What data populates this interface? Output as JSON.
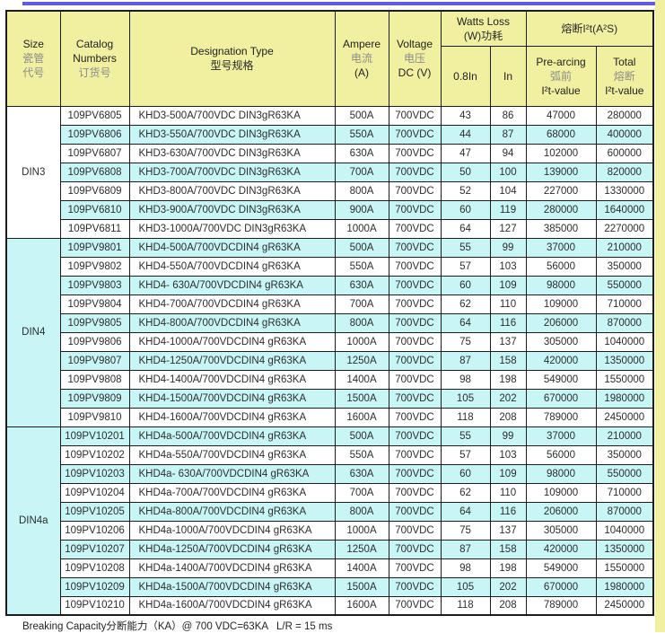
{
  "page": {
    "colors": {
      "accent_line": "#5f5ce0",
      "header_bg": "#f0f0a0",
      "stripe_cyan": "#c8f6f6",
      "border": "#1c1c1c"
    },
    "footer_note": "Breaking Capacity分断能力（KA）@ 700 VDC=63KA   L/R = 15 ms"
  },
  "table": {
    "headers": {
      "size_en": "Size",
      "size_cn1": "瓷管",
      "size_cn2": "代号",
      "catalog_en1": "Catalog",
      "catalog_en2": "Numbers",
      "catalog_cn": "订货号",
      "designation_en": "Designation Type",
      "designation_cn": "型号规格",
      "ampere_en": "Ampere",
      "ampere_cn": "电流",
      "ampere_unit": "(A)",
      "voltage_en": "Voltage",
      "voltage_cn": "电压",
      "voltage_unit": "DC (V)",
      "watts_loss_en": "Watts Loss",
      "watts_loss_cn": "(W)功耗",
      "watts_sub_08in": "0.8In",
      "watts_sub_in": "In",
      "i2t_title": "熔断I²t(A²S)",
      "prearcing_en": "Pre-arcing",
      "prearcing_cn": "弧前",
      "prearcing_val": "I²t-value",
      "total_en": "Total",
      "total_cn": "熔断",
      "total_val": "I²t-value"
    },
    "groups": [
      {
        "size": "DIN3",
        "rows": [
          [
            "109PV6805",
            "KHD3-500A/700VDC DIN3gR63KA",
            "500A",
            "700VDC",
            "43",
            "86",
            "47000",
            "280000"
          ],
          [
            "109PV6806",
            "KHD3-550A/700VDC DIN3gR63KA",
            "550A",
            "700VDC",
            "44",
            "87",
            "68000",
            "400000"
          ],
          [
            "109PV6807",
            "KHD3-630A/700VDC DIN3gR63KA",
            "630A",
            "700VDC",
            "47",
            "94",
            "102000",
            "600000"
          ],
          [
            "109PV6808",
            "KHD3-700A/700VDC DIN3gR63KA",
            "700A",
            "700VDC",
            "50",
            "100",
            "139000",
            "820000"
          ],
          [
            "109PV6809",
            "KHD3-800A/700VDC DIN3gR63KA",
            "800A",
            "700VDC",
            "52",
            "104",
            "227000",
            "1330000"
          ],
          [
            "109PV6810",
            "KHD3-900A/700VDC DIN3gR63KA",
            "900A",
            "700VDC",
            "60",
            "119",
            "280000",
            "1640000"
          ],
          [
            "109PV6811",
            "KHD3-1000A/700VDC DIN3gR63KA",
            "1000A",
            "700VDC",
            "64",
            "127",
            "385000",
            "2270000"
          ]
        ]
      },
      {
        "size": "DIN4",
        "rows": [
          [
            "109PV9801",
            "KHD4-500A/700VDCDIN4 gR63KA",
            "500A",
            "700VDC",
            "55",
            "99",
            "37000",
            "210000"
          ],
          [
            "109PV9802",
            "KHD4-550A/700VDCDIN4 gR63KA",
            "550A",
            "700VDC",
            "57",
            "103",
            "56000",
            "350000"
          ],
          [
            "109PV9803",
            "KHD4- 630A/700VDCDIN4 gR63KA",
            "630A",
            "700VDC",
            "60",
            "109",
            "98000",
            "550000"
          ],
          [
            "109PV9804",
            "KHD4-700A/700VDCDIN4 gR63KA",
            "700A",
            "700VDC",
            "62",
            "110",
            "109000",
            "710000"
          ],
          [
            "109PV9805",
            "KHD4-800A/700VDCDIN4 gR63KA",
            "800A",
            "700VDC",
            "64",
            "116",
            "206000",
            "870000"
          ],
          [
            "109PV9806",
            "KHD4-1000A/700VDCDIN4 gR63KA",
            "1000A",
            "700VDC",
            "75",
            "137",
            "305000",
            "1040000"
          ],
          [
            "109PV9807",
            "KHD4-1250A/700VDCDIN4 gR63KA",
            "1250A",
            "700VDC",
            "87",
            "158",
            "420000",
            "1350000"
          ],
          [
            "109PV9808",
            "KHD4-1400A/700VDCDIN4 gR63KA",
            "1400A",
            "700VDC",
            "98",
            "198",
            "549000",
            "1550000"
          ],
          [
            "109PV9809",
            "KHD4-1500A/700VDCDIN4 gR63KA",
            "1500A",
            "700VDC",
            "105",
            "202",
            "670000",
            "1980000"
          ],
          [
            "109PV9810",
            "KHD4-1600A/700VDCDIN4 gR63KA",
            "1600A",
            "700VDC",
            "118",
            "208",
            "789000",
            "2450000"
          ]
        ]
      },
      {
        "size": "DIN4a",
        "rows": [
          [
            "109PV10201",
            "KHD4a-500A/700VDCDIN4 gR63KA",
            "500A",
            "700VDC",
            "55",
            "99",
            "37000",
            "210000"
          ],
          [
            "109PV10202",
            "KHD4a-550A/700VDCDIN4 gR63KA",
            "550A",
            "700VDC",
            "57",
            "103",
            "56000",
            "350000"
          ],
          [
            "109PV10203",
            "KHD4a- 630A/700VDCDIN4 gR63KA",
            "630A",
            "700VDC",
            "60",
            "109",
            "98000",
            "550000"
          ],
          [
            "109PV10204",
            "KHD4a-700A/700VDCDIN4 gR63KA",
            "700A",
            "700VDC",
            "62",
            "110",
            "109000",
            "710000"
          ],
          [
            "109PV10205",
            "KHD4a-800A/700VDCDIN4 gR63KA",
            "800A",
            "700VDC",
            "64",
            "116",
            "206000",
            "870000"
          ],
          [
            "109PV10206",
            "KHD4a-1000A/700VDCDIN4 gR63KA",
            "1000A",
            "700VDC",
            "75",
            "137",
            "305000",
            "1040000"
          ],
          [
            "109PV10207",
            "KHD4a-1250A/700VDCDIN4 gR63KA",
            "1250A",
            "700VDC",
            "87",
            "158",
            "420000",
            "1350000"
          ],
          [
            "109PV10208",
            "KHD4a-1400A/700VDCDIN4 gR63KA",
            "1400A",
            "700VDC",
            "98",
            "198",
            "549000",
            "1550000"
          ],
          [
            "109PV10209",
            "KHD4a-1500A/700VDCDIN4 gR63KA",
            "1500A",
            "700VDC",
            "105",
            "202",
            "670000",
            "1980000"
          ],
          [
            "109PV10210",
            "KHD4a-1600A/700VDCDIN4 gR63KA",
            "1600A",
            "700VDC",
            "118",
            "208",
            "789000",
            "2450000"
          ]
        ]
      }
    ]
  }
}
